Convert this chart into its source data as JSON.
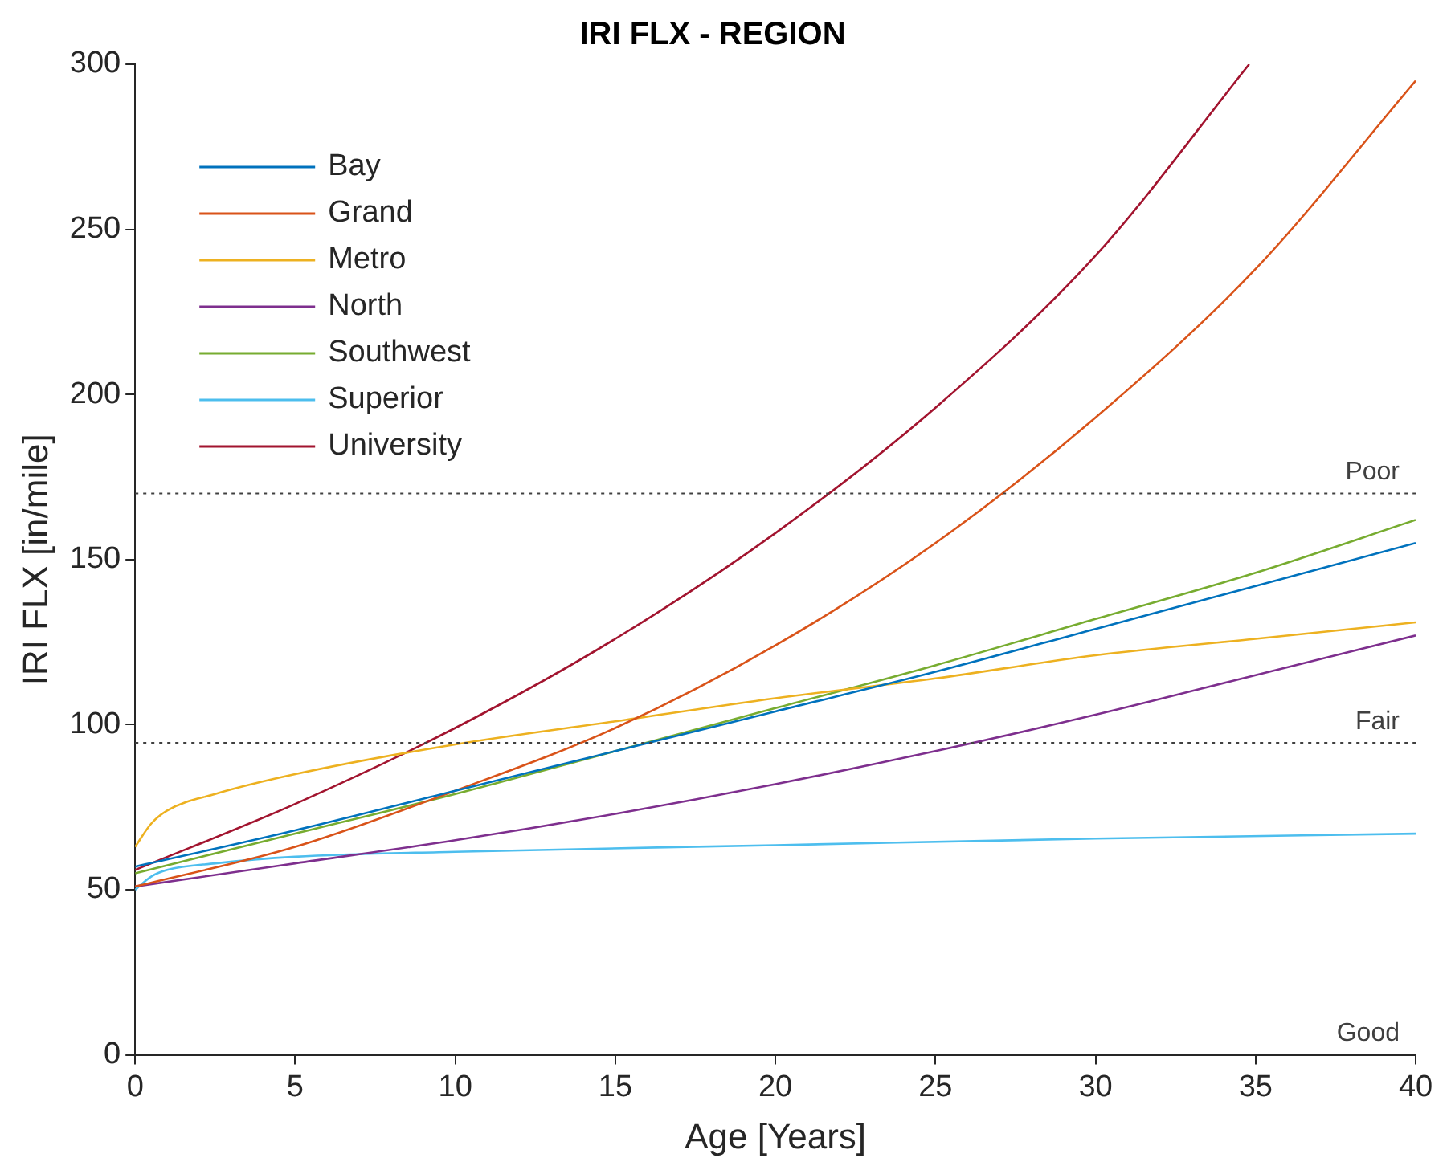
{
  "chart_data": {
    "type": "line",
    "title": "IRI FLX - REGION",
    "xlabel": "Age [Years]",
    "ylabel": "IRI FLX [in/mile]",
    "xlim": [
      0,
      40
    ],
    "xticks": [
      0,
      5,
      10,
      15,
      20,
      25,
      30,
      35,
      40
    ],
    "ylim": [
      0,
      300
    ],
    "yticks": [
      0,
      50,
      100,
      150,
      200,
      250,
      300
    ],
    "grid": false,
    "legend": "top left",
    "marker": "none",
    "line_style": "solid",
    "series": [
      {
        "name": "Bay",
        "color": "#0072bd",
        "x": [
          0,
          5,
          10,
          15,
          20,
          25,
          30,
          35,
          40
        ],
        "values": [
          57,
          68,
          80,
          92,
          104,
          116,
          129,
          142,
          155
        ]
      },
      {
        "name": "Grand",
        "color": "#d95319",
        "x": [
          0,
          5,
          10,
          15,
          20,
          25,
          30,
          35,
          40
        ],
        "values": [
          51,
          63,
          80,
          99,
          124,
          155,
          193,
          238,
          295
        ]
      },
      {
        "name": "Metro",
        "color": "#edb120",
        "x": [
          0,
          0.5,
          1,
          2.5,
          5,
          10,
          15,
          20,
          25,
          30,
          35,
          40
        ],
        "values": [
          63,
          70,
          74,
          79,
          85,
          94,
          101,
          108,
          114,
          121,
          126,
          131
        ]
      },
      {
        "name": "North",
        "color": "#7e2f8e",
        "x": [
          0,
          5,
          10,
          15,
          20,
          25,
          30,
          35,
          40
        ],
        "values": [
          51,
          58,
          65,
          73,
          82,
          92,
          103,
          115,
          127
        ]
      },
      {
        "name": "Southwest",
        "color": "#77ac30",
        "x": [
          0,
          5,
          10,
          15,
          20,
          25,
          30,
          35,
          40
        ],
        "values": [
          55,
          67,
          79,
          92,
          105,
          118,
          132,
          146,
          162
        ]
      },
      {
        "name": "Superior",
        "color": "#4dbeee",
        "x": [
          0,
          0.5,
          1,
          2.5,
          5,
          10,
          20,
          30,
          40
        ],
        "values": [
          50,
          54,
          56,
          58,
          60,
          61.5,
          63.5,
          65.5,
          67
        ]
      },
      {
        "name": "University",
        "color": "#a2142f",
        "x": [
          0,
          5,
          10,
          15,
          20,
          25,
          30,
          34.8
        ],
        "values": [
          56,
          76,
          99,
          126,
          158,
          196,
          242,
          300
        ]
      }
    ],
    "ref_lines": [
      {
        "axis": "y",
        "value": 170,
        "label": "Poor",
        "color": "#404040",
        "line_style": "dotted"
      },
      {
        "axis": "y",
        "value": 94.5,
        "label": "Fair",
        "color": "#404040",
        "line_style": "dotted"
      }
    ],
    "annotations": [
      "Good"
    ]
  }
}
